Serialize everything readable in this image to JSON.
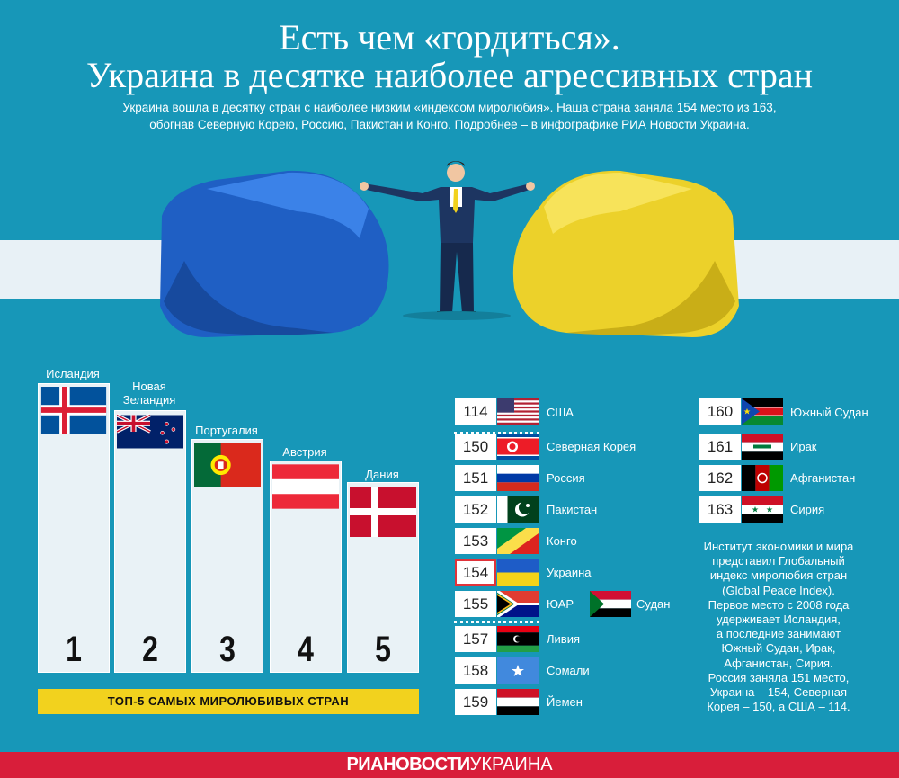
{
  "title_line1": "Есть чем «гордиться».",
  "title_line2": "Украина в десятке наиболее агрессивных стран",
  "subtitle_line1": "Украина вошла в десятку стран с наиболее низким «индексом миролюбия». Наша страна заняла 154 место из 163,",
  "subtitle_line2": "обогнав Северную Корею, Россию, Пакистан и Конго. Подробнее – в инфографике РИА Новости Украина.",
  "top5": {
    "label": "ТОП-5 САМЫХ МИРОЛЮБИВЫХ СТРАН",
    "items": [
      {
        "rank": "1",
        "name": "Исландия"
      },
      {
        "rank": "2",
        "name_line1": "Новая",
        "name_line2": "Зеландия"
      },
      {
        "rank": "3",
        "name": "Португалия"
      },
      {
        "rank": "4",
        "name": "Австрия"
      },
      {
        "rank": "5",
        "name": "Дания"
      }
    ]
  },
  "ranking_left": [
    {
      "rank": "114",
      "name": "США",
      "flag": "usa-flag"
    },
    {
      "rank": "150",
      "name": "Северная Корея",
      "flag": "north-korea-flag"
    },
    {
      "rank": "151",
      "name": "Россия",
      "flag": "russia-flag"
    },
    {
      "rank": "152",
      "name": "Пакистан",
      "flag": "pakistan-flag"
    },
    {
      "rank": "153",
      "name": "Конго",
      "flag": "congo-flag"
    },
    {
      "rank": "154",
      "name": "Украина",
      "flag": "ukraine-flag",
      "highlight": true
    },
    {
      "rank": "155",
      "name": "ЮАР",
      "flag": "south-africa-flag",
      "extra_name": "Судан",
      "extra_flag": "sudan-flag"
    },
    {
      "rank": "157",
      "name": "Ливия",
      "flag": "libya-flag"
    },
    {
      "rank": "158",
      "name": "Сомали",
      "flag": "somalia-flag"
    },
    {
      "rank": "159",
      "name": "Йемен",
      "flag": "yemen-flag"
    }
  ],
  "ranking_right": [
    {
      "rank": "160",
      "name": "Южный Судан",
      "flag": "south-sudan-flag"
    },
    {
      "rank": "161",
      "name": "Ирак",
      "flag": "iraq-flag"
    },
    {
      "rank": "162",
      "name": "Афганистан",
      "flag": "afghanistan-flag"
    },
    {
      "rank": "163",
      "name": "Сирия",
      "flag": "syria-flag"
    }
  ],
  "info_lines": [
    "Институт экономики и мира",
    "представил Глобальный",
    "индекс миролюбия стран",
    "(Global Peace Index).",
    "Первое место с 2008 года",
    "удерживает Исландия,",
    "а последние занимают",
    "Южный Судан, Ирак,",
    "Афганистан, Сирия.",
    "Россия заняла 151 место,",
    "Украина – 154, Северная",
    "Корея – 150, а США – 114."
  ],
  "footer": {
    "brand_bold": "РИАНОВОСТИ",
    "brand_light": "УКРАИНА"
  },
  "colors": {
    "background": "#1797b8",
    "accent_yellow": "#f2d21e",
    "footer_red": "#d81e3a",
    "glove_blue": "#1f5fc4",
    "glove_yellow": "#ecd12a"
  }
}
